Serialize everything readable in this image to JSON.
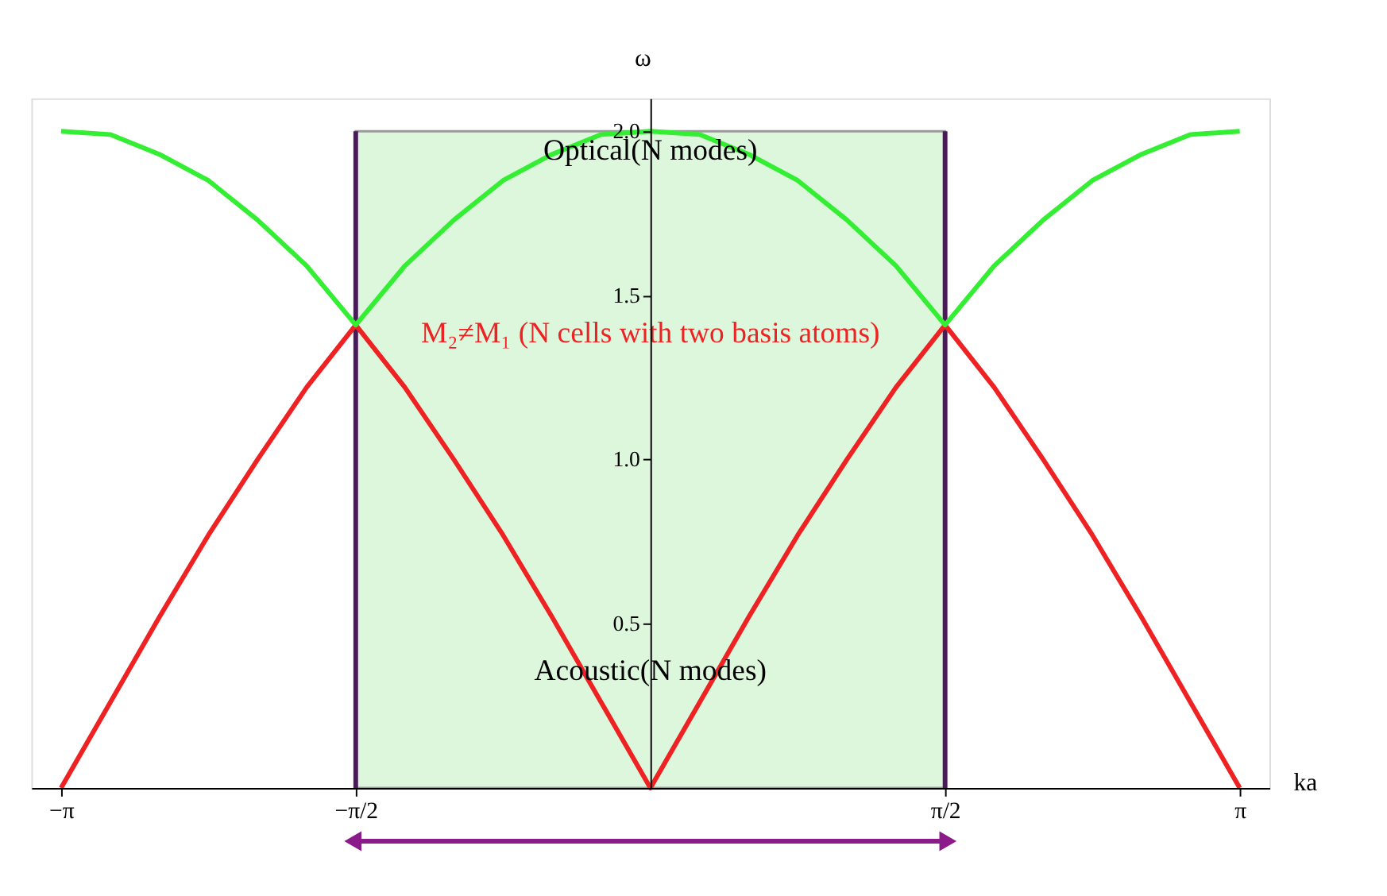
{
  "chart_data": {
    "type": "line",
    "xlabel": "ka",
    "ylabel": "ω",
    "x": [
      -3.1416,
      -2.8798,
      -2.618,
      -2.3562,
      -2.0944,
      -1.8326,
      -1.5708,
      -1.309,
      -1.0472,
      -0.7854,
      -0.5236,
      -0.2618,
      0,
      0.2618,
      0.5236,
      0.7854,
      1.0472,
      1.309,
      1.5708,
      1.8326,
      2.0944,
      2.3562,
      2.618,
      2.8798,
      3.1416
    ],
    "series": [
      {
        "color": "#ee2222",
        "values": [
          0,
          0.26,
          0.52,
          0.77,
          1.0,
          1.22,
          1.41,
          1.22,
          1.0,
          0.77,
          0.52,
          0.26,
          0,
          0.26,
          0.52,
          0.77,
          1.0,
          1.22,
          1.41,
          1.22,
          1.0,
          0.77,
          0.52,
          0.26,
          0
        ]
      },
      {
        "color": "#33ee33",
        "values": [
          2.0,
          1.99,
          1.93,
          1.85,
          1.73,
          1.59,
          1.41,
          1.59,
          1.73,
          1.85,
          1.93,
          1.99,
          2.0,
          1.99,
          1.93,
          1.85,
          1.73,
          1.59,
          1.41,
          1.59,
          1.73,
          1.85,
          1.93,
          1.99,
          2.0
        ]
      }
    ],
    "xlim": [
      -3.3,
      3.3
    ],
    "ylim": [
      0,
      2.1
    ],
    "xticks": [
      {
        "value": -3.1416,
        "label": "−π"
      },
      {
        "value": -1.5708,
        "label": "−π/2"
      },
      {
        "value": 1.5708,
        "label": "π/2"
      },
      {
        "value": 3.1416,
        "label": "π"
      }
    ],
    "yticks": [
      0.5,
      {
        "value": 1,
        "label": "1.0"
      },
      1.5,
      {
        "value": 2,
        "label": "2.0"
      }
    ],
    "bands": [
      {
        "axis": "x",
        "from": -1.5708,
        "to": 1.5708,
        "color": "#ddf7dd"
      }
    ],
    "ref_lines": [
      {
        "axis": "x",
        "value": -1.5708,
        "color": "#4b1a5a"
      },
      {
        "axis": "x",
        "value": 1.5708,
        "color": "#4b1a5a"
      }
    ],
    "annotations": [
      "Optical(N modes)",
      "M₂≠M₁ (N cells with two basis atoms)",
      "Acoustic(N modes)"
    ],
    "grid": false,
    "marker": "none",
    "line_style": "solid"
  }
}
